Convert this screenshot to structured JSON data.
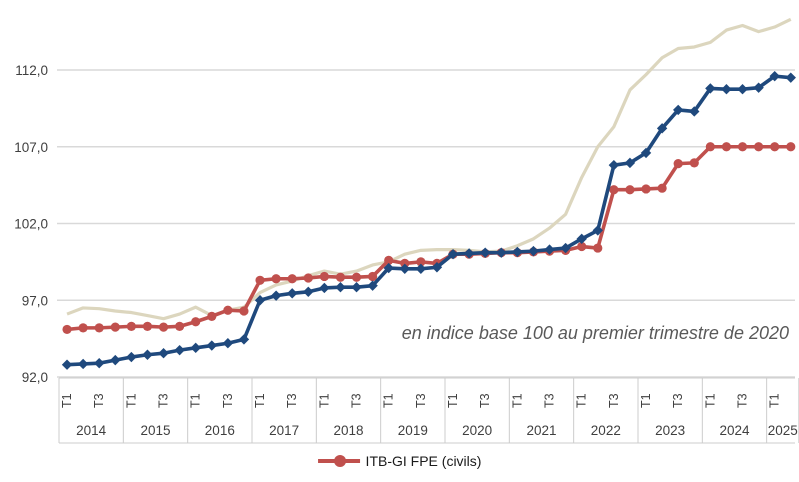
{
  "chart_data": {
    "type": "line",
    "annotation": "en indice base 100 au premier trimestre de 2020",
    "y_axis": {
      "min": 92,
      "max": 115.5,
      "gridlines": [
        92,
        97,
        102,
        107,
        112
      ],
      "tick_labels": [
        "92,0",
        "97,0",
        "102,0",
        "107,0",
        "112,0"
      ],
      "grid_color": "#d9d9d9"
    },
    "x_axis": {
      "years": [
        "2014",
        "2015",
        "2016",
        "2017",
        "2018",
        "2019",
        "2020",
        "2021",
        "2022",
        "2023",
        "2024",
        "2025"
      ],
      "quarters_per_year": [
        4,
        4,
        4,
        4,
        4,
        4,
        4,
        4,
        4,
        4,
        4,
        2
      ],
      "quarter_tick_labels": [
        "T1",
        "T3"
      ],
      "separator_color": "#cccccc",
      "label_color": "#3f3f3f"
    },
    "series": [
      {
        "id": "beige-reference-line",
        "legend_label": null,
        "color": "#dcd6be",
        "marker": "none",
        "line_width": 3.2,
        "values": [
          96.1,
          96.5,
          96.45,
          96.3,
          96.2,
          96.0,
          95.8,
          96.1,
          96.55,
          96.0,
          96.35,
          96.55,
          97.5,
          98.0,
          98.25,
          98.6,
          98.9,
          98.7,
          98.9,
          99.3,
          99.5,
          100.0,
          100.25,
          100.3,
          100.3,
          100.25,
          100.15,
          100.2,
          100.55,
          101.0,
          101.7,
          102.6,
          105.0,
          107.0,
          108.3,
          110.7,
          111.7,
          112.8,
          113.4,
          113.5,
          113.8,
          114.6,
          114.9,
          114.5,
          114.8,
          115.3
        ]
      },
      {
        "id": "itb-gi-fpe-civils-line",
        "legend_label": "ITB-GI FPE (civils)",
        "color": "#c0504d",
        "marker": "circle",
        "line_width": 3.6,
        "values": [
          95.1,
          95.2,
          95.2,
          95.25,
          95.3,
          95.3,
          95.25,
          95.3,
          95.6,
          95.95,
          96.35,
          96.3,
          98.3,
          98.4,
          98.4,
          98.45,
          98.55,
          98.5,
          98.5,
          98.55,
          99.6,
          99.4,
          99.5,
          99.4,
          100.0,
          100.0,
          100.05,
          100.1,
          100.1,
          100.15,
          100.2,
          100.25,
          100.5,
          100.4,
          104.2,
          104.2,
          104.25,
          104.3,
          105.9,
          105.95,
          107.0,
          107.0,
          107.0,
          107.0,
          107.0,
          107.0
        ]
      },
      {
        "id": "dark-blue-line",
        "legend_label": null,
        "color": "#1f497d",
        "marker": "diamond",
        "line_width": 3.6,
        "values": [
          92.8,
          92.85,
          92.9,
          93.1,
          93.3,
          93.45,
          93.55,
          93.75,
          93.9,
          94.05,
          94.2,
          94.45,
          97.0,
          97.3,
          97.45,
          97.55,
          97.8,
          97.85,
          97.85,
          97.95,
          99.1,
          99.05,
          99.05,
          99.15,
          100.0,
          100.05,
          100.1,
          100.1,
          100.15,
          100.2,
          100.3,
          100.4,
          101.0,
          101.55,
          105.8,
          105.95,
          106.6,
          108.2,
          109.4,
          109.3,
          110.8,
          110.75,
          110.75,
          110.85,
          111.6,
          111.5
        ]
      }
    ],
    "legend": {
      "position": "bottom-center",
      "items": [
        {
          "label": "ITB-GI FPE (civils)",
          "color": "#c0504d",
          "marker": "circle"
        }
      ]
    }
  }
}
